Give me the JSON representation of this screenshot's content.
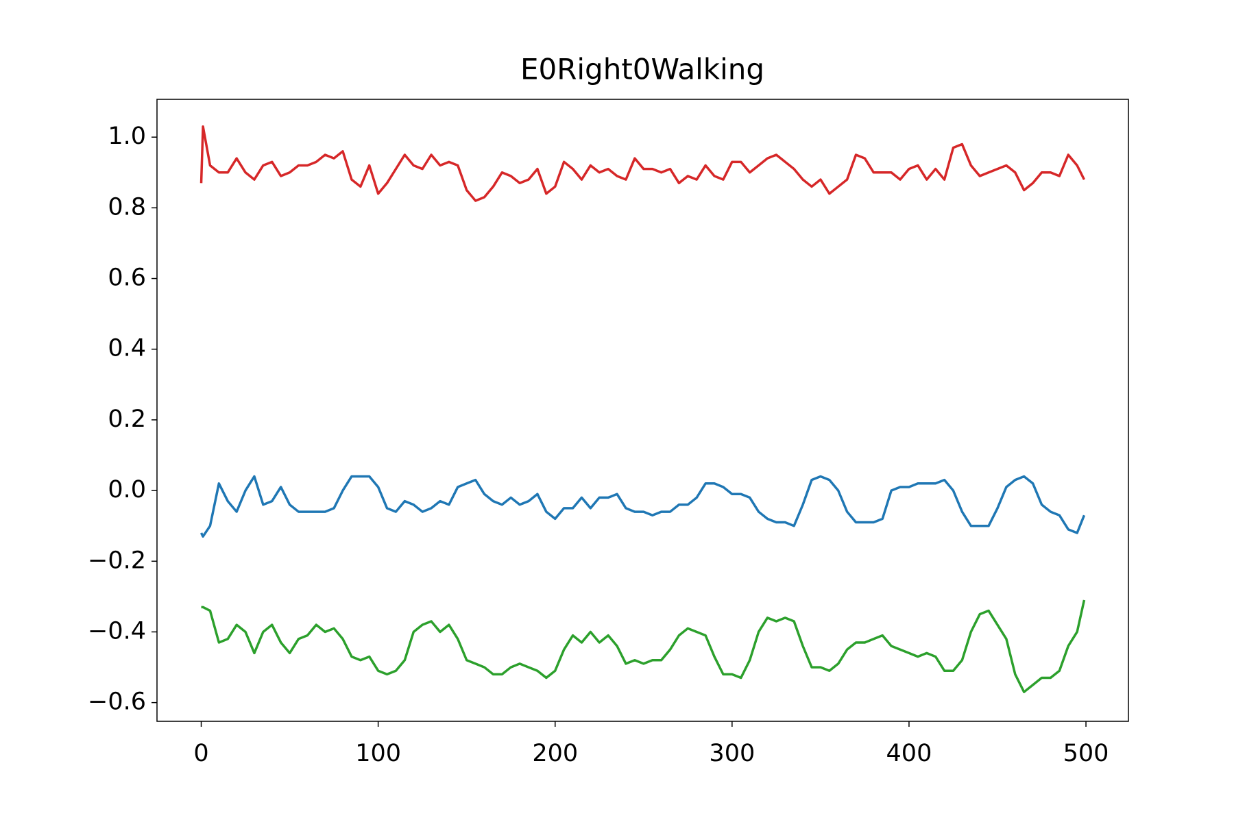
{
  "chart_data": {
    "type": "line",
    "title": "E0Right0Walking",
    "x": [
      0,
      1,
      5,
      10,
      15,
      20,
      25,
      30,
      35,
      40,
      45,
      50,
      55,
      60,
      65,
      70,
      75,
      80,
      85,
      90,
      95,
      100,
      105,
      110,
      115,
      120,
      125,
      130,
      135,
      140,
      145,
      150,
      155,
      160,
      165,
      170,
      175,
      180,
      185,
      190,
      195,
      200,
      205,
      210,
      215,
      220,
      225,
      230,
      235,
      240,
      245,
      250,
      255,
      260,
      265,
      270,
      275,
      280,
      285,
      290,
      295,
      300,
      305,
      310,
      315,
      320,
      325,
      330,
      335,
      340,
      345,
      350,
      355,
      360,
      365,
      370,
      375,
      380,
      385,
      390,
      395,
      400,
      405,
      410,
      415,
      420,
      425,
      430,
      435,
      440,
      445,
      450,
      455,
      460,
      465,
      470,
      475,
      480,
      485,
      490,
      495,
      499
    ],
    "series": [
      {
        "color": "#d62728",
        "values": [
          0.87,
          1.03,
          0.92,
          0.9,
          0.9,
          0.94,
          0.9,
          0.88,
          0.92,
          0.93,
          0.89,
          0.9,
          0.92,
          0.92,
          0.93,
          0.95,
          0.94,
          0.96,
          0.88,
          0.86,
          0.92,
          0.84,
          0.87,
          0.91,
          0.95,
          0.92,
          0.91,
          0.95,
          0.92,
          0.93,
          0.92,
          0.85,
          0.82,
          0.83,
          0.86,
          0.9,
          0.89,
          0.87,
          0.88,
          0.91,
          0.84,
          0.86,
          0.93,
          0.91,
          0.88,
          0.92,
          0.9,
          0.91,
          0.89,
          0.88,
          0.94,
          0.91,
          0.91,
          0.9,
          0.91,
          0.87,
          0.89,
          0.88,
          0.92,
          0.89,
          0.88,
          0.93,
          0.93,
          0.9,
          0.92,
          0.94,
          0.95,
          0.93,
          0.91,
          0.88,
          0.86,
          0.88,
          0.84,
          0.86,
          0.88,
          0.95,
          0.94,
          0.9,
          0.9,
          0.9,
          0.88,
          0.91,
          0.92,
          0.88,
          0.91,
          0.88,
          0.97,
          0.98,
          0.92,
          0.89,
          0.9,
          0.91,
          0.92,
          0.9,
          0.85,
          0.87,
          0.9,
          0.9,
          0.89,
          0.95,
          0.92,
          0.88
        ]
      },
      {
        "color": "#1f77b4",
        "values": [
          -0.12,
          -0.13,
          -0.1,
          0.02,
          -0.03,
          -0.06,
          0.0,
          0.04,
          -0.04,
          -0.03,
          0.01,
          -0.04,
          -0.06,
          -0.06,
          -0.06,
          -0.06,
          -0.05,
          0.0,
          0.04,
          0.04,
          0.04,
          0.01,
          -0.05,
          -0.06,
          -0.03,
          -0.04,
          -0.06,
          -0.05,
          -0.03,
          -0.04,
          0.01,
          0.02,
          0.03,
          -0.01,
          -0.03,
          -0.04,
          -0.02,
          -0.04,
          -0.03,
          -0.01,
          -0.06,
          -0.08,
          -0.05,
          -0.05,
          -0.02,
          -0.05,
          -0.02,
          -0.02,
          -0.01,
          -0.05,
          -0.06,
          -0.06,
          -0.07,
          -0.06,
          -0.06,
          -0.04,
          -0.04,
          -0.02,
          0.02,
          0.02,
          0.01,
          -0.01,
          -0.01,
          -0.02,
          -0.06,
          -0.08,
          -0.09,
          -0.09,
          -0.1,
          -0.04,
          0.03,
          0.04,
          0.03,
          0.0,
          -0.06,
          -0.09,
          -0.09,
          -0.09,
          -0.08,
          0.0,
          0.01,
          0.01,
          0.02,
          0.02,
          0.02,
          0.03,
          0.0,
          -0.06,
          -0.1,
          -0.1,
          -0.1,
          -0.05,
          0.01,
          0.03,
          0.04,
          0.02,
          -0.04,
          -0.06,
          -0.07,
          -0.11,
          -0.12,
          -0.07
        ]
      },
      {
        "color": "#2ca02c",
        "values": [
          -0.33,
          -0.33,
          -0.34,
          -0.43,
          -0.42,
          -0.38,
          -0.4,
          -0.46,
          -0.4,
          -0.38,
          -0.43,
          -0.46,
          -0.42,
          -0.41,
          -0.38,
          -0.4,
          -0.39,
          -0.42,
          -0.47,
          -0.48,
          -0.47,
          -0.51,
          -0.52,
          -0.51,
          -0.48,
          -0.4,
          -0.38,
          -0.37,
          -0.4,
          -0.38,
          -0.42,
          -0.48,
          -0.49,
          -0.5,
          -0.52,
          -0.52,
          -0.5,
          -0.49,
          -0.5,
          -0.51,
          -0.53,
          -0.51,
          -0.45,
          -0.41,
          -0.43,
          -0.4,
          -0.43,
          -0.41,
          -0.44,
          -0.49,
          -0.48,
          -0.49,
          -0.48,
          -0.48,
          -0.45,
          -0.41,
          -0.39,
          -0.4,
          -0.41,
          -0.47,
          -0.52,
          -0.52,
          -0.53,
          -0.48,
          -0.4,
          -0.36,
          -0.37,
          -0.36,
          -0.37,
          -0.44,
          -0.5,
          -0.5,
          -0.51,
          -0.49,
          -0.45,
          -0.43,
          -0.43,
          -0.42,
          -0.41,
          -0.44,
          -0.45,
          -0.46,
          -0.47,
          -0.46,
          -0.47,
          -0.51,
          -0.51,
          -0.48,
          -0.4,
          -0.35,
          -0.34,
          -0.38,
          -0.42,
          -0.52,
          -0.57,
          -0.55,
          -0.53,
          -0.53,
          -0.51,
          -0.44,
          -0.4,
          -0.31
        ]
      }
    ],
    "xlim": [
      -25,
      524
    ],
    "xticks": [
      0,
      100,
      200,
      300,
      400,
      500
    ],
    "ylim": [
      -0.653,
      1.107
    ],
    "yticks": [
      {
        "value": -0.6,
        "label": "−0.6"
      },
      {
        "value": -0.4,
        "label": "−0.4"
      },
      {
        "value": -0.2,
        "label": "−0.2"
      },
      {
        "value": 0,
        "label": "0.0"
      },
      0.2,
      0.4,
      0.6,
      0.8,
      {
        "value": 1,
        "label": "1.0"
      }
    ]
  }
}
